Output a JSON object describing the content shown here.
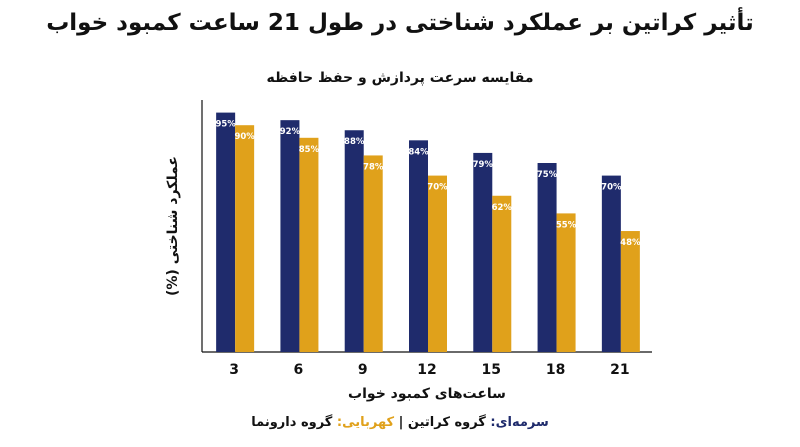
{
  "title": "تأثیر کراتین بر عملکرد شناختی در طول 21 ساعت کمبود خواب",
  "subtitle": "مقایسه سرعت پردازش و حفظ حافظه",
  "colors": {
    "creatine": "#1f2b6c",
    "placebo": "#e0a11b",
    "axis": "#111111"
  },
  "legend": {
    "creatine_color_word": "سرمه‌ای:",
    "creatine_label": " گروه کراتین",
    "separator": " | ",
    "placebo_color_word": "کهربایی:",
    "placebo_label": " گروه دارونما"
  },
  "chart_data": {
    "type": "bar",
    "title": "تأثیر کراتین بر عملکرد شناختی در طول 21 ساعت کمبود خواب",
    "subtitle": "مقایسه سرعت پردازش و حفظ حافظه",
    "xlabel": "ساعت‌های کمبود خواب",
    "ylabel": "عملکرد شناختی (%)",
    "categories": [
      "3",
      "6",
      "9",
      "12",
      "15",
      "18",
      "21"
    ],
    "ylim": [
      0,
      100
    ],
    "grid": false,
    "legend_position": "bottom",
    "series": [
      {
        "name": "گروه کراتین",
        "color": "#1f2b6c",
        "values": [
          95,
          92,
          88,
          84,
          79,
          75,
          70
        ]
      },
      {
        "name": "گروه دارونما",
        "color": "#e0a11b",
        "values": [
          90,
          85,
          78,
          70,
          62,
          55,
          48
        ]
      }
    ]
  }
}
